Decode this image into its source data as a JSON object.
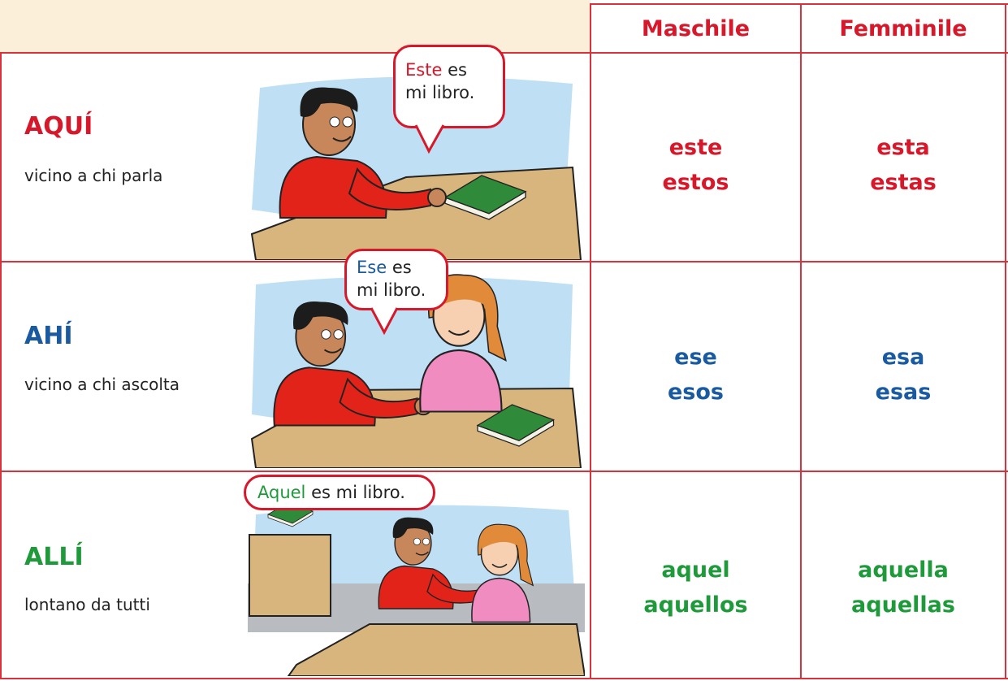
{
  "header": {
    "columns": [
      "Maschile",
      "Femminile"
    ]
  },
  "rows": [
    {
      "label": "AQUÍ",
      "description": "vicino a chi parla",
      "bubble": {
        "highlight": "Este",
        "text": [
          "es",
          "mi libro."
        ]
      },
      "masculine": [
        "este",
        "estos"
      ],
      "feminine": [
        "esta",
        "estas"
      ]
    },
    {
      "label": "AHÍ",
      "description": "vicino a chi ascolta",
      "bubble": {
        "highlight": "Ese",
        "text": [
          "es",
          "mi libro."
        ]
      },
      "masculine": [
        "ese",
        "esos"
      ],
      "feminine": [
        "esa",
        "esas"
      ]
    },
    {
      "label": "ALLÍ",
      "description": "lontano da tutti",
      "bubble": {
        "highlight": "Aquel",
        "text": [
          "es mi libro."
        ]
      },
      "masculine": [
        "aquel",
        "aquellos"
      ],
      "feminine": [
        "aquella",
        "aquellas"
      ]
    }
  ]
}
